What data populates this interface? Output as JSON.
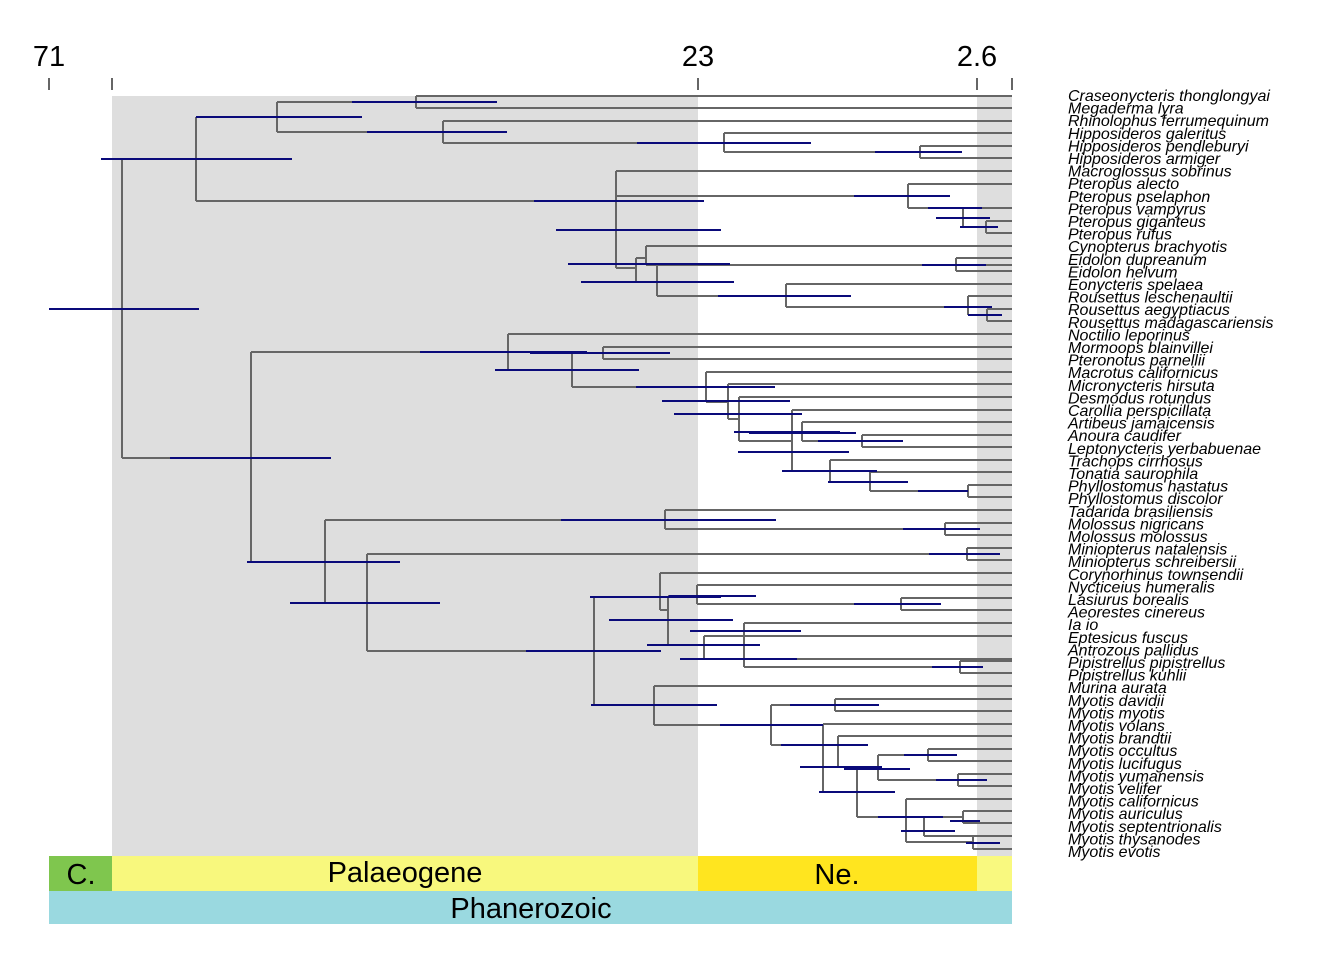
{
  "time_axis": {
    "ticks": [
      {
        "label": "71",
        "value": 71
      },
      {
        "label": "23",
        "value": 23
      },
      {
        "label": "2.6",
        "value": 2.6
      }
    ]
  },
  "colors": {
    "shade": "#dedede",
    "branch": "#666666",
    "hpd": "#0a0a7a",
    "cretaceous": "#7fc64e",
    "palaeogene": "#f8f87d",
    "neogene": "#ffe51f",
    "quaternary": "#f9f97f",
    "phanerozoic": "#9ad9e0"
  },
  "periods": [
    {
      "label": "C.",
      "color": "#7fc64e"
    },
    {
      "label": "Palaeogene",
      "color": "#f8f87d"
    },
    {
      "label": "Ne.",
      "color": "#ffe51f"
    },
    {
      "label": "",
      "color": "#f9f97f"
    }
  ],
  "eon": {
    "label": "Phanerozoic",
    "color": "#9ad9e0"
  },
  "taxa": [
    "Craseonycteris thonglongyai",
    "Megaderma lyra",
    "Rhinolophus ferrumequinum",
    "Hipposideros galeritus",
    "Hipposideros pendleburyi",
    "Hipposideros armiger",
    "Macroglossus sobrinus",
    "Pteropus alecto",
    "Pteropus pselaphon",
    "Pteropus vampyrus",
    "Pteropus giganteus",
    "Pteropus rufus",
    "Cynopterus brachyotis",
    "Eidolon dupreanum",
    "Eidolon helvum",
    "Eonycteris spelaea",
    "Rousettus leschenaultii",
    "Rousettus aegyptiacus",
    "Rousettus madagascariensis",
    "Noctilio leporinus",
    "Mormoops blainvillei",
    "Pteronotus parnellii",
    "Macrotus californicus",
    "Micronycteris hirsuta",
    "Desmodus rotundus",
    "Carollia perspicillata",
    "Artibeus jamaicensis",
    "Anoura caudifer",
    "Leptonycteris yerbabuenae",
    "Trachops cirrhosus",
    "Tonatia saurophila",
    "Phyllostomus hastatus",
    "Phyllostomus discolor",
    "Tadarida brasiliensis",
    "Molossus nigricans",
    "Molossus molossus",
    "Miniopterus natalensis",
    "Miniopterus schreibersii",
    "Corynorhinus townsendii",
    "Nycticeius humeralis",
    "Lasiurus borealis",
    "Aeorestes cinereus",
    "Ia io",
    "Eptesicus fuscus",
    "Antrozous pallidus",
    "Pipistrellus pipistrellus",
    "Pipistrellus kuhlii",
    "Murina aurata",
    "Myotis davidii",
    "Myotis myotis",
    "Myotis volans",
    "Myotis brandtii",
    "Myotis occultus",
    "Myotis lucifugus",
    "Myotis yumanensis",
    "Myotis velifer",
    "Myotis californicus",
    "Myotis auriculus",
    "Myotis septentrionalis",
    "Myotis thysanodes",
    "Myotis evotis"
  ]
}
